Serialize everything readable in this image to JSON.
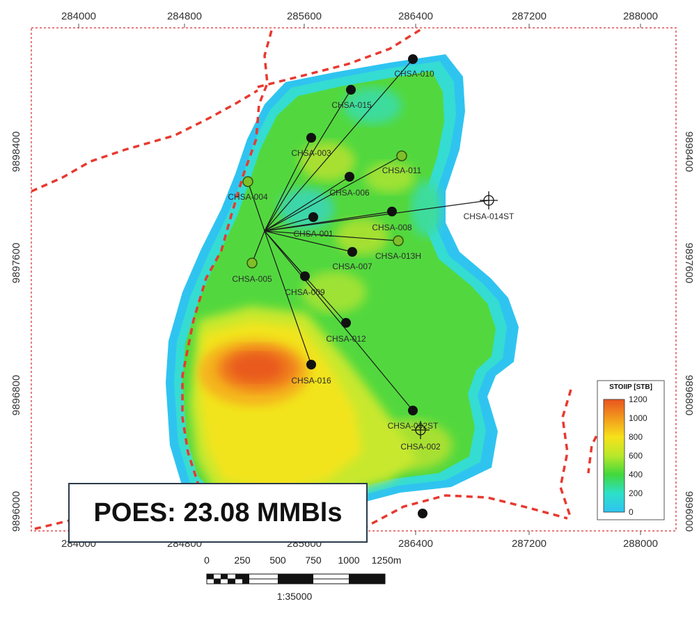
{
  "map": {
    "x_ticks": [
      "284000",
      "284800",
      "285600",
      "286400",
      "287200",
      "288000"
    ],
    "y_ticks": [
      "9898400",
      "9897600",
      "9896800",
      "9896000"
    ],
    "wells": [
      {
        "name": "CHSA-010",
        "type": "producer"
      },
      {
        "name": "CHSA-015",
        "type": "producer"
      },
      {
        "name": "CHSA-003",
        "type": "producer"
      },
      {
        "name": "CHSA-011",
        "type": "injector"
      },
      {
        "name": "CHSA-006",
        "type": "producer"
      },
      {
        "name": "CHSA-004",
        "type": "injector"
      },
      {
        "name": "CHSA-008",
        "type": "producer"
      },
      {
        "name": "CHSA-001",
        "type": "producer"
      },
      {
        "name": "CHSA-014ST",
        "type": "abandoned"
      },
      {
        "name": "CHSA-013H",
        "type": "injector"
      },
      {
        "name": "CHSA-007",
        "type": "producer"
      },
      {
        "name": "CHSA-005",
        "type": "injector"
      },
      {
        "name": "CHSA-009",
        "type": "producer"
      },
      {
        "name": "CHSA-012",
        "type": "producer"
      },
      {
        "name": "CHSA-016",
        "type": "producer"
      },
      {
        "name": "CHSA-002ST",
        "type": "producer"
      },
      {
        "name": "CHSA-002",
        "type": "abandoned"
      }
    ],
    "poes_label": "POES: 23.08 MMBls",
    "fault_color": "#e8392f",
    "border_color": "#e05050"
  },
  "legend": {
    "title": "STOIIP [STB]",
    "ticks": [
      "1200",
      "1000",
      "800",
      "600",
      "400",
      "200",
      "0"
    ],
    "colors": [
      "#e8541f",
      "#f29a1d",
      "#f7e11a",
      "#b8e82a",
      "#41d83c",
      "#2de0c8",
      "#2fc4f0"
    ]
  },
  "scale": {
    "ticks": [
      "0",
      "250",
      "500",
      "750",
      "1000",
      "1250m"
    ],
    "ratio": "1:35000"
  }
}
